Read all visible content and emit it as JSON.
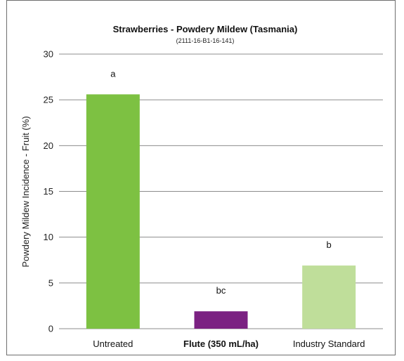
{
  "chart_data": {
    "type": "bar",
    "title": "Strawberries - Powdery Mildew (Tasmania)",
    "subtitle": "(2111-16-B1-16-141)",
    "ylabel": "Powdery Mildew Incidence - Fruit (%)",
    "xlabel": "",
    "ylim": [
      0,
      30
    ],
    "yticks": [
      0,
      5,
      10,
      15,
      20,
      25,
      30
    ],
    "grid": true,
    "categories": [
      "Untreated",
      "Flute (350 mL/ha)",
      "Industry Standard"
    ],
    "category_bold": [
      false,
      true,
      false
    ],
    "values": [
      25.6,
      1.9,
      6.9
    ],
    "significance_letters": [
      "a",
      "bc",
      "b"
    ],
    "colors": [
      "#7dc142",
      "#7b2182",
      "#bfde9a"
    ]
  }
}
